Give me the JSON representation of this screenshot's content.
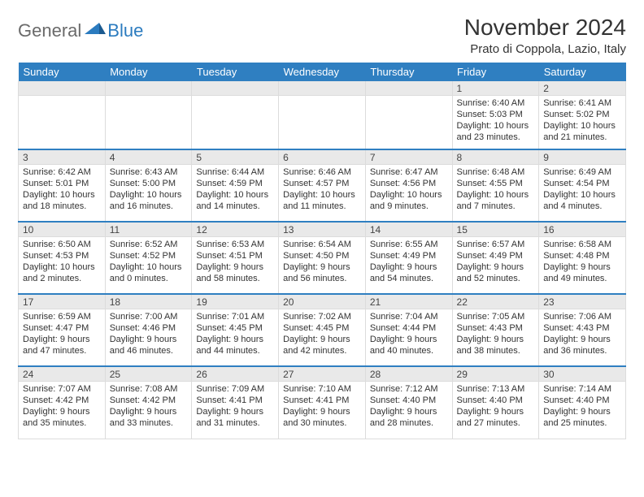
{
  "logo": {
    "general": "General",
    "blue": "Blue"
  },
  "title": "November 2024",
  "location": "Prato di Coppola, Lazio, Italy",
  "colors": {
    "header_bg": "#2f7fc1",
    "header_text": "#ffffff",
    "daynum_bg": "#e9e9e9",
    "week_separator": "#2f7fc1",
    "cell_border": "#dcdcdc",
    "body_text": "#333333",
    "title_text": "#333333",
    "logo_general": "#6a6a6a",
    "logo_blue": "#2b7bbf",
    "page_bg": "#ffffff"
  },
  "typography": {
    "title_fontsize": 28,
    "location_fontsize": 15,
    "header_fontsize": 13,
    "daynum_fontsize": 12,
    "body_fontsize": 11,
    "logo_fontsize": 22,
    "font_family": "Arial"
  },
  "weekdays": [
    "Sunday",
    "Monday",
    "Tuesday",
    "Wednesday",
    "Thursday",
    "Friday",
    "Saturday"
  ],
  "weeks": [
    [
      null,
      null,
      null,
      null,
      null,
      {
        "n": "1",
        "sr": "Sunrise: 6:40 AM",
        "ss": "Sunset: 5:03 PM",
        "d1": "Daylight: 10 hours",
        "d2": "and 23 minutes."
      },
      {
        "n": "2",
        "sr": "Sunrise: 6:41 AM",
        "ss": "Sunset: 5:02 PM",
        "d1": "Daylight: 10 hours",
        "d2": "and 21 minutes."
      }
    ],
    [
      {
        "n": "3",
        "sr": "Sunrise: 6:42 AM",
        "ss": "Sunset: 5:01 PM",
        "d1": "Daylight: 10 hours",
        "d2": "and 18 minutes."
      },
      {
        "n": "4",
        "sr": "Sunrise: 6:43 AM",
        "ss": "Sunset: 5:00 PM",
        "d1": "Daylight: 10 hours",
        "d2": "and 16 minutes."
      },
      {
        "n": "5",
        "sr": "Sunrise: 6:44 AM",
        "ss": "Sunset: 4:59 PM",
        "d1": "Daylight: 10 hours",
        "d2": "and 14 minutes."
      },
      {
        "n": "6",
        "sr": "Sunrise: 6:46 AM",
        "ss": "Sunset: 4:57 PM",
        "d1": "Daylight: 10 hours",
        "d2": "and 11 minutes."
      },
      {
        "n": "7",
        "sr": "Sunrise: 6:47 AM",
        "ss": "Sunset: 4:56 PM",
        "d1": "Daylight: 10 hours",
        "d2": "and 9 minutes."
      },
      {
        "n": "8",
        "sr": "Sunrise: 6:48 AM",
        "ss": "Sunset: 4:55 PM",
        "d1": "Daylight: 10 hours",
        "d2": "and 7 minutes."
      },
      {
        "n": "9",
        "sr": "Sunrise: 6:49 AM",
        "ss": "Sunset: 4:54 PM",
        "d1": "Daylight: 10 hours",
        "d2": "and 4 minutes."
      }
    ],
    [
      {
        "n": "10",
        "sr": "Sunrise: 6:50 AM",
        "ss": "Sunset: 4:53 PM",
        "d1": "Daylight: 10 hours",
        "d2": "and 2 minutes."
      },
      {
        "n": "11",
        "sr": "Sunrise: 6:52 AM",
        "ss": "Sunset: 4:52 PM",
        "d1": "Daylight: 10 hours",
        "d2": "and 0 minutes."
      },
      {
        "n": "12",
        "sr": "Sunrise: 6:53 AM",
        "ss": "Sunset: 4:51 PM",
        "d1": "Daylight: 9 hours",
        "d2": "and 58 minutes."
      },
      {
        "n": "13",
        "sr": "Sunrise: 6:54 AM",
        "ss": "Sunset: 4:50 PM",
        "d1": "Daylight: 9 hours",
        "d2": "and 56 minutes."
      },
      {
        "n": "14",
        "sr": "Sunrise: 6:55 AM",
        "ss": "Sunset: 4:49 PM",
        "d1": "Daylight: 9 hours",
        "d2": "and 54 minutes."
      },
      {
        "n": "15",
        "sr": "Sunrise: 6:57 AM",
        "ss": "Sunset: 4:49 PM",
        "d1": "Daylight: 9 hours",
        "d2": "and 52 minutes."
      },
      {
        "n": "16",
        "sr": "Sunrise: 6:58 AM",
        "ss": "Sunset: 4:48 PM",
        "d1": "Daylight: 9 hours",
        "d2": "and 49 minutes."
      }
    ],
    [
      {
        "n": "17",
        "sr": "Sunrise: 6:59 AM",
        "ss": "Sunset: 4:47 PM",
        "d1": "Daylight: 9 hours",
        "d2": "and 47 minutes."
      },
      {
        "n": "18",
        "sr": "Sunrise: 7:00 AM",
        "ss": "Sunset: 4:46 PM",
        "d1": "Daylight: 9 hours",
        "d2": "and 46 minutes."
      },
      {
        "n": "19",
        "sr": "Sunrise: 7:01 AM",
        "ss": "Sunset: 4:45 PM",
        "d1": "Daylight: 9 hours",
        "d2": "and 44 minutes."
      },
      {
        "n": "20",
        "sr": "Sunrise: 7:02 AM",
        "ss": "Sunset: 4:45 PM",
        "d1": "Daylight: 9 hours",
        "d2": "and 42 minutes."
      },
      {
        "n": "21",
        "sr": "Sunrise: 7:04 AM",
        "ss": "Sunset: 4:44 PM",
        "d1": "Daylight: 9 hours",
        "d2": "and 40 minutes."
      },
      {
        "n": "22",
        "sr": "Sunrise: 7:05 AM",
        "ss": "Sunset: 4:43 PM",
        "d1": "Daylight: 9 hours",
        "d2": "and 38 minutes."
      },
      {
        "n": "23",
        "sr": "Sunrise: 7:06 AM",
        "ss": "Sunset: 4:43 PM",
        "d1": "Daylight: 9 hours",
        "d2": "and 36 minutes."
      }
    ],
    [
      {
        "n": "24",
        "sr": "Sunrise: 7:07 AM",
        "ss": "Sunset: 4:42 PM",
        "d1": "Daylight: 9 hours",
        "d2": "and 35 minutes."
      },
      {
        "n": "25",
        "sr": "Sunrise: 7:08 AM",
        "ss": "Sunset: 4:42 PM",
        "d1": "Daylight: 9 hours",
        "d2": "and 33 minutes."
      },
      {
        "n": "26",
        "sr": "Sunrise: 7:09 AM",
        "ss": "Sunset: 4:41 PM",
        "d1": "Daylight: 9 hours",
        "d2": "and 31 minutes."
      },
      {
        "n": "27",
        "sr": "Sunrise: 7:10 AM",
        "ss": "Sunset: 4:41 PM",
        "d1": "Daylight: 9 hours",
        "d2": "and 30 minutes."
      },
      {
        "n": "28",
        "sr": "Sunrise: 7:12 AM",
        "ss": "Sunset: 4:40 PM",
        "d1": "Daylight: 9 hours",
        "d2": "and 28 minutes."
      },
      {
        "n": "29",
        "sr": "Sunrise: 7:13 AM",
        "ss": "Sunset: 4:40 PM",
        "d1": "Daylight: 9 hours",
        "d2": "and 27 minutes."
      },
      {
        "n": "30",
        "sr": "Sunrise: 7:14 AM",
        "ss": "Sunset: 4:40 PM",
        "d1": "Daylight: 9 hours",
        "d2": "and 25 minutes."
      }
    ]
  ]
}
